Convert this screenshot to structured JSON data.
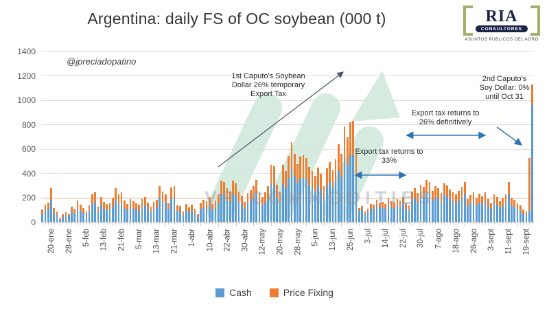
{
  "title": "Argentina: daily FS of OC soybean (000 t)",
  "handle": "@jpreciadopatino",
  "watermark": "VR COMMODITIES",
  "logo": {
    "brand": "RIA",
    "badge": "CONSULTORES",
    "tagline": "ASUNTOS PUBLICOS DEL AGRO"
  },
  "annotations": {
    "a1": "1st Caputo's Soybean Dollar 26% temporary Export Tax",
    "a2": "Export tax returns to 33%",
    "a3": "Export tax returns to 26% definitively",
    "a4": "2nd Caputo's Soy Dollar: 0% until Oct 31"
  },
  "legend": [
    {
      "label": "Cash",
      "color": "#5B9BD5"
    },
    {
      "label": "Price Fixing",
      "color": "#ED7D31"
    }
  ],
  "chart_data": {
    "type": "bar",
    "stacked": true,
    "title": "Argentina: daily FS of OC soybean (000 t)",
    "xlabel": "",
    "ylabel": "",
    "ylim": [
      0,
      1400
    ],
    "y_ticks": [
      0,
      200,
      400,
      600,
      800,
      1000,
      1200,
      1400
    ],
    "grid": true,
    "reference_line": {
      "value": 200,
      "color": "#ED7D31"
    },
    "legend_position": "bottom",
    "x_tick_labels": [
      "20-ene",
      "28-ene",
      "5-feb",
      "13-feb",
      "21-feb",
      "5-mar",
      "13-mar",
      "21-mar",
      "1-abr",
      "10-abr",
      "22-abr",
      "30-abr",
      "12-may",
      "20-may",
      "28-may",
      "5-jun",
      "13-jun",
      "25-jun",
      "3-jul",
      "14-jul",
      "22-jul",
      "30-jul",
      "7-ago",
      "18-ago",
      "26-ago",
      "3-sept",
      "11-sept",
      "19-sept"
    ],
    "bars_per_tick": 6,
    "series": [
      {
        "name": "Cash",
        "color": "#5B9BD5",
        "values": [
          65,
          95,
          110,
          185,
          80,
          60,
          25,
          45,
          60,
          50,
          85,
          75,
          120,
          95,
          80,
          60,
          95,
          150,
          165,
          85,
          140,
          115,
          100,
          105,
          130,
          185,
          150,
          165,
          120,
          100,
          125,
          115,
          105,
          95,
          125,
          140,
          110,
          85,
          115,
          125,
          200,
          170,
          155,
          105,
          190,
          200,
          95,
          90,
          60,
          100,
          85,
          95,
          75,
          45,
          105,
          125,
          115,
          140,
          100,
          120,
          155,
          230,
          220,
          185,
          170,
          230,
          215,
          170,
          145,
          115,
          160,
          175,
          200,
          235,
          160,
          140,
          165,
          200,
          315,
          305,
          205,
          170,
          315,
          280,
          365,
          440,
          375,
          320,
          360,
          365,
          355,
          305,
          280,
          255,
          300,
          265,
          200,
          295,
          330,
          285,
          345,
          425,
          370,
          525,
          465,
          545,
          555,
          375,
          95,
          105,
          70,
          85,
          115,
          110,
          140,
          120,
          125,
          110,
          145,
          130,
          120,
          140,
          130,
          155,
          115,
          100,
          185,
          200,
          170,
          220,
          205,
          245,
          230,
          180,
          210,
          195,
          165,
          225,
          215,
          190,
          175,
          160,
          180,
          200,
          230,
          130,
          155,
          175,
          140,
          165,
          150,
          170,
          130,
          110,
          160,
          145,
          120,
          135,
          160,
          230,
          140,
          125,
          110,
          95,
          70,
          60,
          95,
          960
        ]
      },
      {
        "name": "Price Fixing",
        "color": "#ED7D31",
        "values": [
          40,
          50,
          55,
          95,
          40,
          30,
          10,
          20,
          25,
          20,
          45,
          35,
          60,
          50,
          40,
          30,
          45,
          80,
          85,
          45,
          70,
          55,
          50,
          55,
          70,
          95,
          80,
          85,
          60,
          50,
          65,
          60,
          55,
          50,
          65,
          70,
          55,
          45,
          55,
          60,
          100,
          85,
          75,
          50,
          95,
          100,
          45,
          45,
          30,
          50,
          40,
          50,
          35,
          20,
          50,
          60,
          60,
          70,
          50,
          60,
          75,
          115,
          110,
          95,
          85,
          115,
          105,
          85,
          75,
          55,
          80,
          90,
          100,
          115,
          80,
          70,
          85,
          100,
          155,
          155,
          105,
          85,
          155,
          140,
          180,
          220,
          185,
          160,
          180,
          185,
          175,
          150,
          140,
          125,
          150,
          135,
          100,
          150,
          165,
          145,
          175,
          215,
          190,
          265,
          235,
          275,
          275,
          185,
          25,
          30,
          20,
          25,
          35,
          35,
          45,
          40,
          45,
          40,
          50,
          45,
          45,
          50,
          50,
          55,
          45,
          40,
          70,
          80,
          70,
          90,
          85,
          105,
          100,
          80,
          90,
          85,
          75,
          95,
          90,
          80,
          75,
          70,
          80,
          90,
          100,
          60,
          70,
          75,
          65,
          70,
          65,
          75,
          60,
          50,
          70,
          65,
          55,
          60,
          70,
          100,
          60,
          60,
          50,
          45,
          35,
          30,
          435,
          170
        ]
      }
    ]
  }
}
